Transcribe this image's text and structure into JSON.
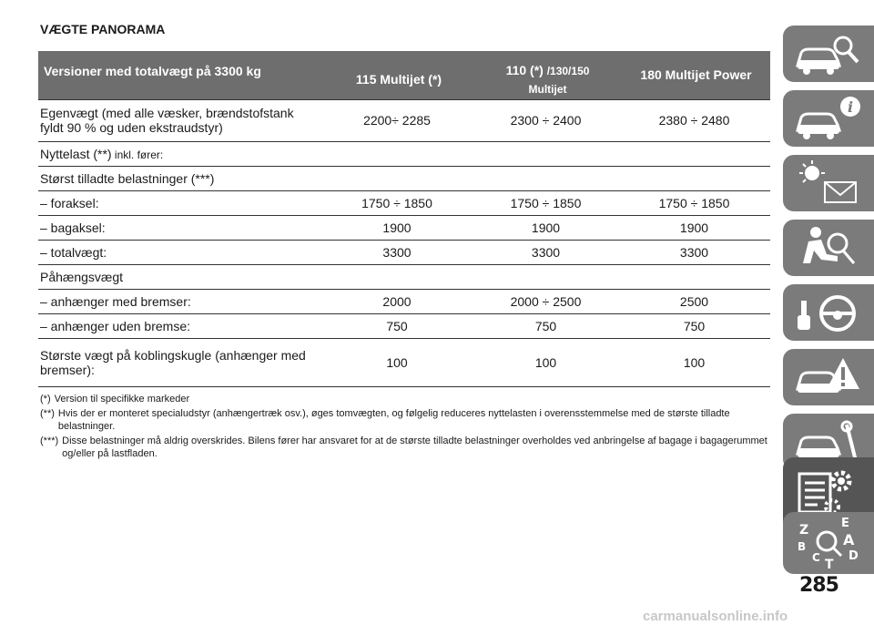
{
  "title": "VÆGTE PANORAMA",
  "header": {
    "col0": "Versioner med totalvægt på 3300 kg",
    "col1": "115 Multijet (*)",
    "col2_main": "110 (*)",
    "col2_small": "/130/150",
    "col2_line2": "Multijet",
    "col3": "180 Multijet Power"
  },
  "rows": [
    {
      "label1": "Egenvægt (med alle væsker, brændstofstank",
      "label2": "fyldt 90 % og uden ekstraudstyr)",
      "v1": "2200÷ 2285",
      "v2": "2300 ÷ 2400",
      "v3": "2380 ÷ 2480"
    },
    {
      "label": "Nyttelast (**)",
      "label_small": " inkl. fører:",
      "v1": "",
      "v2": "",
      "v3": ""
    },
    {
      "label": "Størst tilladte belastninger (***)",
      "v1": "",
      "v2": "",
      "v3": ""
    },
    {
      "label": "– foraksel:",
      "v1": "1750 ÷ 1850",
      "v2": "1750 ÷ 1850",
      "v3": "1750 ÷ 1850"
    },
    {
      "label": "– bagaksel:",
      "v1": "1900",
      "v2": "1900",
      "v3": "1900"
    },
    {
      "label": "– totalvægt:",
      "v1": "3300",
      "v2": "3300",
      "v3": "3300"
    },
    {
      "label": "Påhængsvægt",
      "v1": "",
      "v2": "",
      "v3": ""
    },
    {
      "label": "– anhænger med bremser:",
      "v1": "2000",
      "v2": "2000 ÷ 2500",
      "v3": "2500"
    },
    {
      "label": "– anhænger uden bremse:",
      "v1": "750",
      "v2": "750",
      "v3": "750"
    },
    {
      "label1": "Største vægt på koblingskugle (anhænger med",
      "label2": "bremser):",
      "v1": "100",
      "v2": "100",
      "v3": "100"
    }
  ],
  "footnotes": [
    {
      "mark": "(*)",
      "text": "Version til specifikke markeder"
    },
    {
      "mark": "(**)",
      "text": "Hvis der er monteret specialudstyr (anhængertræk osv.), øges tomvægten, og følgelig reduceres nyttelasten i overensstemmelse med de største tilladte belastninger."
    },
    {
      "mark": "(***)",
      "text": "Disse belastninger må aldrig overskrides. Bilens fører har ansvaret for at de største tilladte belastninger overholdes ved anbringelse af bagage i bagagerummet og/eller på lastfladen."
    }
  ],
  "side_tabs": {
    "icons": [
      "car-search-icon",
      "car-info-icon",
      "warning-lights-icon",
      "airbag-safety-icon",
      "steering-wheel-key-icon",
      "car-emergency-icon",
      "car-maintenance-icon",
      "technical-data-icon",
      "alphabetical-index-icon"
    ],
    "index_letters": [
      "Z",
      "E",
      "B",
      "A",
      "C",
      "D",
      "T"
    ],
    "active_index": 7
  },
  "page_number": "285",
  "watermark": "carmanualsonline.info"
}
